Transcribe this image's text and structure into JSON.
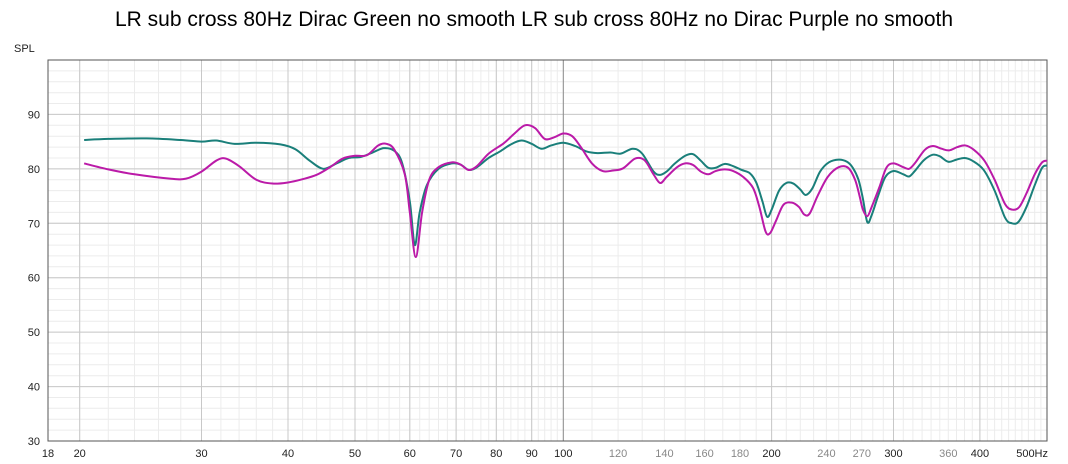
{
  "chart_data": {
    "type": "line",
    "title": "LR sub cross 80Hz Dirac Green no smooth LR sub cross 80Hz no Dirac Purple no smooth",
    "ylabel": "SPL",
    "xlabel": "",
    "x_scale": "log",
    "xlim": [
      18,
      500
    ],
    "ylim": [
      30,
      100
    ],
    "grid": true,
    "y_ticks": [
      "30",
      "40",
      "50",
      "60",
      "70",
      "80",
      "90"
    ],
    "x_ticks": [
      {
        "value": 18,
        "label": "18",
        "major": true
      },
      {
        "value": 20,
        "label": "20",
        "major": true
      },
      {
        "value": 30,
        "label": "30",
        "major": true
      },
      {
        "value": 40,
        "label": "40",
        "major": true
      },
      {
        "value": 50,
        "label": "50",
        "major": true
      },
      {
        "value": 60,
        "label": "60",
        "major": true
      },
      {
        "value": 70,
        "label": "70",
        "major": true
      },
      {
        "value": 80,
        "label": "80",
        "major": true
      },
      {
        "value": 90,
        "label": "90",
        "major": true
      },
      {
        "value": 100,
        "label": "100",
        "major": true
      },
      {
        "value": 120,
        "label": "120",
        "major": false
      },
      {
        "value": 140,
        "label": "140",
        "major": false
      },
      {
        "value": 160,
        "label": "160",
        "major": false
      },
      {
        "value": 180,
        "label": "180",
        "major": false
      },
      {
        "value": 200,
        "label": "200",
        "major": true
      },
      {
        "value": 240,
        "label": "240",
        "major": false
      },
      {
        "value": 270,
        "label": "270",
        "major": false
      },
      {
        "value": 300,
        "label": "300",
        "major": true
      },
      {
        "value": 360,
        "label": "360",
        "major": false
      },
      {
        "value": 400,
        "label": "400",
        "major": true
      },
      {
        "value": "500",
        "label": "500Hz",
        "major": true
      }
    ],
    "series": [
      {
        "color": "#1a7f7a",
        "points": [
          [
            20.3,
            85.3
          ],
          [
            22,
            85.5
          ],
          [
            25,
            85.6
          ],
          [
            28,
            85.3
          ],
          [
            30,
            85.0
          ],
          [
            31.5,
            85.2
          ],
          [
            33.5,
            84.6
          ],
          [
            36,
            84.8
          ],
          [
            39,
            84.5
          ],
          [
            41,
            83.6
          ],
          [
            43,
            81.5
          ],
          [
            45,
            80.0
          ],
          [
            47,
            81.0
          ],
          [
            49,
            82.0
          ],
          [
            51,
            82.2
          ],
          [
            53,
            83.0
          ],
          [
            55,
            83.8
          ],
          [
            57,
            83.3
          ],
          [
            58.5,
            81.0
          ],
          [
            60,
            74.0
          ],
          [
            61,
            66.0
          ],
          [
            62,
            72.0
          ],
          [
            63.5,
            77.0
          ],
          [
            66,
            80.0
          ],
          [
            69,
            81.0
          ],
          [
            71,
            80.8
          ],
          [
            73,
            79.8
          ],
          [
            75,
            80.3
          ],
          [
            78,
            82.0
          ],
          [
            81,
            83.2
          ],
          [
            84,
            84.5
          ],
          [
            87,
            85.2
          ],
          [
            90,
            84.6
          ],
          [
            93,
            83.7
          ],
          [
            96,
            84.3
          ],
          [
            100,
            84.8
          ],
          [
            104,
            84.2
          ],
          [
            108,
            83.2
          ],
          [
            112,
            82.9
          ],
          [
            117,
            83.0
          ],
          [
            121,
            82.8
          ],
          [
            126,
            83.7
          ],
          [
            130,
            82.8
          ],
          [
            135,
            79.5
          ],
          [
            138,
            78.9
          ],
          [
            141,
            79.5
          ],
          [
            145,
            81.0
          ],
          [
            150,
            82.4
          ],
          [
            154,
            82.7
          ],
          [
            158,
            81.5
          ],
          [
            162,
            80.2
          ],
          [
            166,
            80.2
          ],
          [
            171,
            80.9
          ],
          [
            176,
            80.5
          ],
          [
            181,
            79.8
          ],
          [
            186,
            79.2
          ],
          [
            190,
            77.5
          ],
          [
            194,
            74.0
          ],
          [
            197,
            71.2
          ],
          [
            200,
            72.5
          ],
          [
            205,
            76.0
          ],
          [
            210,
            77.4
          ],
          [
            215,
            77.3
          ],
          [
            220,
            76.2
          ],
          [
            224,
            75.2
          ],
          [
            229,
            76.4
          ],
          [
            235,
            79.5
          ],
          [
            242,
            81.2
          ],
          [
            250,
            81.7
          ],
          [
            257,
            81.3
          ],
          [
            262,
            80.2
          ],
          [
            267,
            78.0
          ],
          [
            271,
            74.5
          ],
          [
            275,
            70.2
          ],
          [
            279,
            71.5
          ],
          [
            285,
            75.0
          ],
          [
            292,
            78.5
          ],
          [
            300,
            79.6
          ],
          [
            310,
            79.0
          ],
          [
            316,
            78.6
          ],
          [
            322,
            79.6
          ],
          [
            332,
            81.6
          ],
          [
            342,
            82.6
          ],
          [
            350,
            82.3
          ],
          [
            360,
            81.3
          ],
          [
            370,
            81.7
          ],
          [
            380,
            82.0
          ],
          [
            390,
            81.5
          ],
          [
            405,
            79.8
          ],
          [
            420,
            76.0
          ],
          [
            435,
            71.0
          ],
          [
            445,
            70.0
          ],
          [
            455,
            70.3
          ],
          [
            467,
            73.0
          ],
          [
            480,
            77.0
          ],
          [
            492,
            80.2
          ],
          [
            500,
            80.6
          ]
        ]
      },
      {
        "color": "#bb1aa8",
        "points": [
          [
            20.3,
            81.0
          ],
          [
            22,
            79.9
          ],
          [
            24,
            79.0
          ],
          [
            27,
            78.2
          ],
          [
            28.5,
            78.2
          ],
          [
            30,
            79.5
          ],
          [
            31.5,
            81.5
          ],
          [
            32.5,
            81.9
          ],
          [
            34,
            80.5
          ],
          [
            36,
            78.0
          ],
          [
            38,
            77.3
          ],
          [
            40,
            77.5
          ],
          [
            42,
            78.1
          ],
          [
            44,
            78.9
          ],
          [
            46,
            80.3
          ],
          [
            48,
            81.9
          ],
          [
            50,
            82.4
          ],
          [
            52,
            82.5
          ],
          [
            54,
            84.3
          ],
          [
            55.5,
            84.6
          ],
          [
            57,
            83.5
          ],
          [
            59,
            79.0
          ],
          [
            60,
            72.0
          ],
          [
            61.2,
            63.8
          ],
          [
            62.5,
            72.0
          ],
          [
            64,
            78.0
          ],
          [
            66,
            80.3
          ],
          [
            69,
            81.2
          ],
          [
            71,
            80.8
          ],
          [
            73,
            79.8
          ],
          [
            75,
            80.5
          ],
          [
            78,
            82.8
          ],
          [
            82,
            84.7
          ],
          [
            85,
            86.5
          ],
          [
            88,
            88.0
          ],
          [
            91,
            87.5
          ],
          [
            94,
            85.5
          ],
          [
            97,
            85.8
          ],
          [
            100,
            86.5
          ],
          [
            103,
            86.0
          ],
          [
            106,
            84.0
          ],
          [
            110,
            81.0
          ],
          [
            114,
            79.6
          ],
          [
            118,
            79.7
          ],
          [
            122,
            80.1
          ],
          [
            127,
            81.9
          ],
          [
            131,
            81.6
          ],
          [
            135,
            79.0
          ],
          [
            138,
            77.4
          ],
          [
            141,
            78.5
          ],
          [
            146,
            80.3
          ],
          [
            150,
            81.0
          ],
          [
            154,
            80.7
          ],
          [
            158,
            79.5
          ],
          [
            162,
            79.0
          ],
          [
            166,
            79.6
          ],
          [
            171,
            79.9
          ],
          [
            176,
            79.6
          ],
          [
            182,
            78.5
          ],
          [
            188,
            76.5
          ],
          [
            192,
            73.0
          ],
          [
            196,
            68.5
          ],
          [
            199,
            68.2
          ],
          [
            203,
            70.5
          ],
          [
            208,
            73.4
          ],
          [
            214,
            73.8
          ],
          [
            219,
            73.0
          ],
          [
            223,
            71.6
          ],
          [
            227,
            71.8
          ],
          [
            233,
            75.0
          ],
          [
            241,
            78.5
          ],
          [
            250,
            80.3
          ],
          [
            258,
            80.2
          ],
          [
            264,
            78.0
          ],
          [
            268,
            75.0
          ],
          [
            271,
            72.5
          ],
          [
            275,
            71.3
          ],
          [
            279,
            73.0
          ],
          [
            286,
            76.5
          ],
          [
            293,
            80.2
          ],
          [
            300,
            81.0
          ],
          [
            310,
            80.3
          ],
          [
            316,
            80.0
          ],
          [
            322,
            81.0
          ],
          [
            333,
            83.5
          ],
          [
            342,
            84.2
          ],
          [
            352,
            83.7
          ],
          [
            361,
            83.4
          ],
          [
            371,
            84.0
          ],
          [
            381,
            84.3
          ],
          [
            392,
            83.5
          ],
          [
            406,
            81.5
          ],
          [
            420,
            78.0
          ],
          [
            435,
            73.5
          ],
          [
            446,
            72.5
          ],
          [
            456,
            73.0
          ],
          [
            467,
            75.5
          ],
          [
            480,
            79.0
          ],
          [
            492,
            81.2
          ],
          [
            500,
            81.5
          ]
        ]
      }
    ]
  }
}
